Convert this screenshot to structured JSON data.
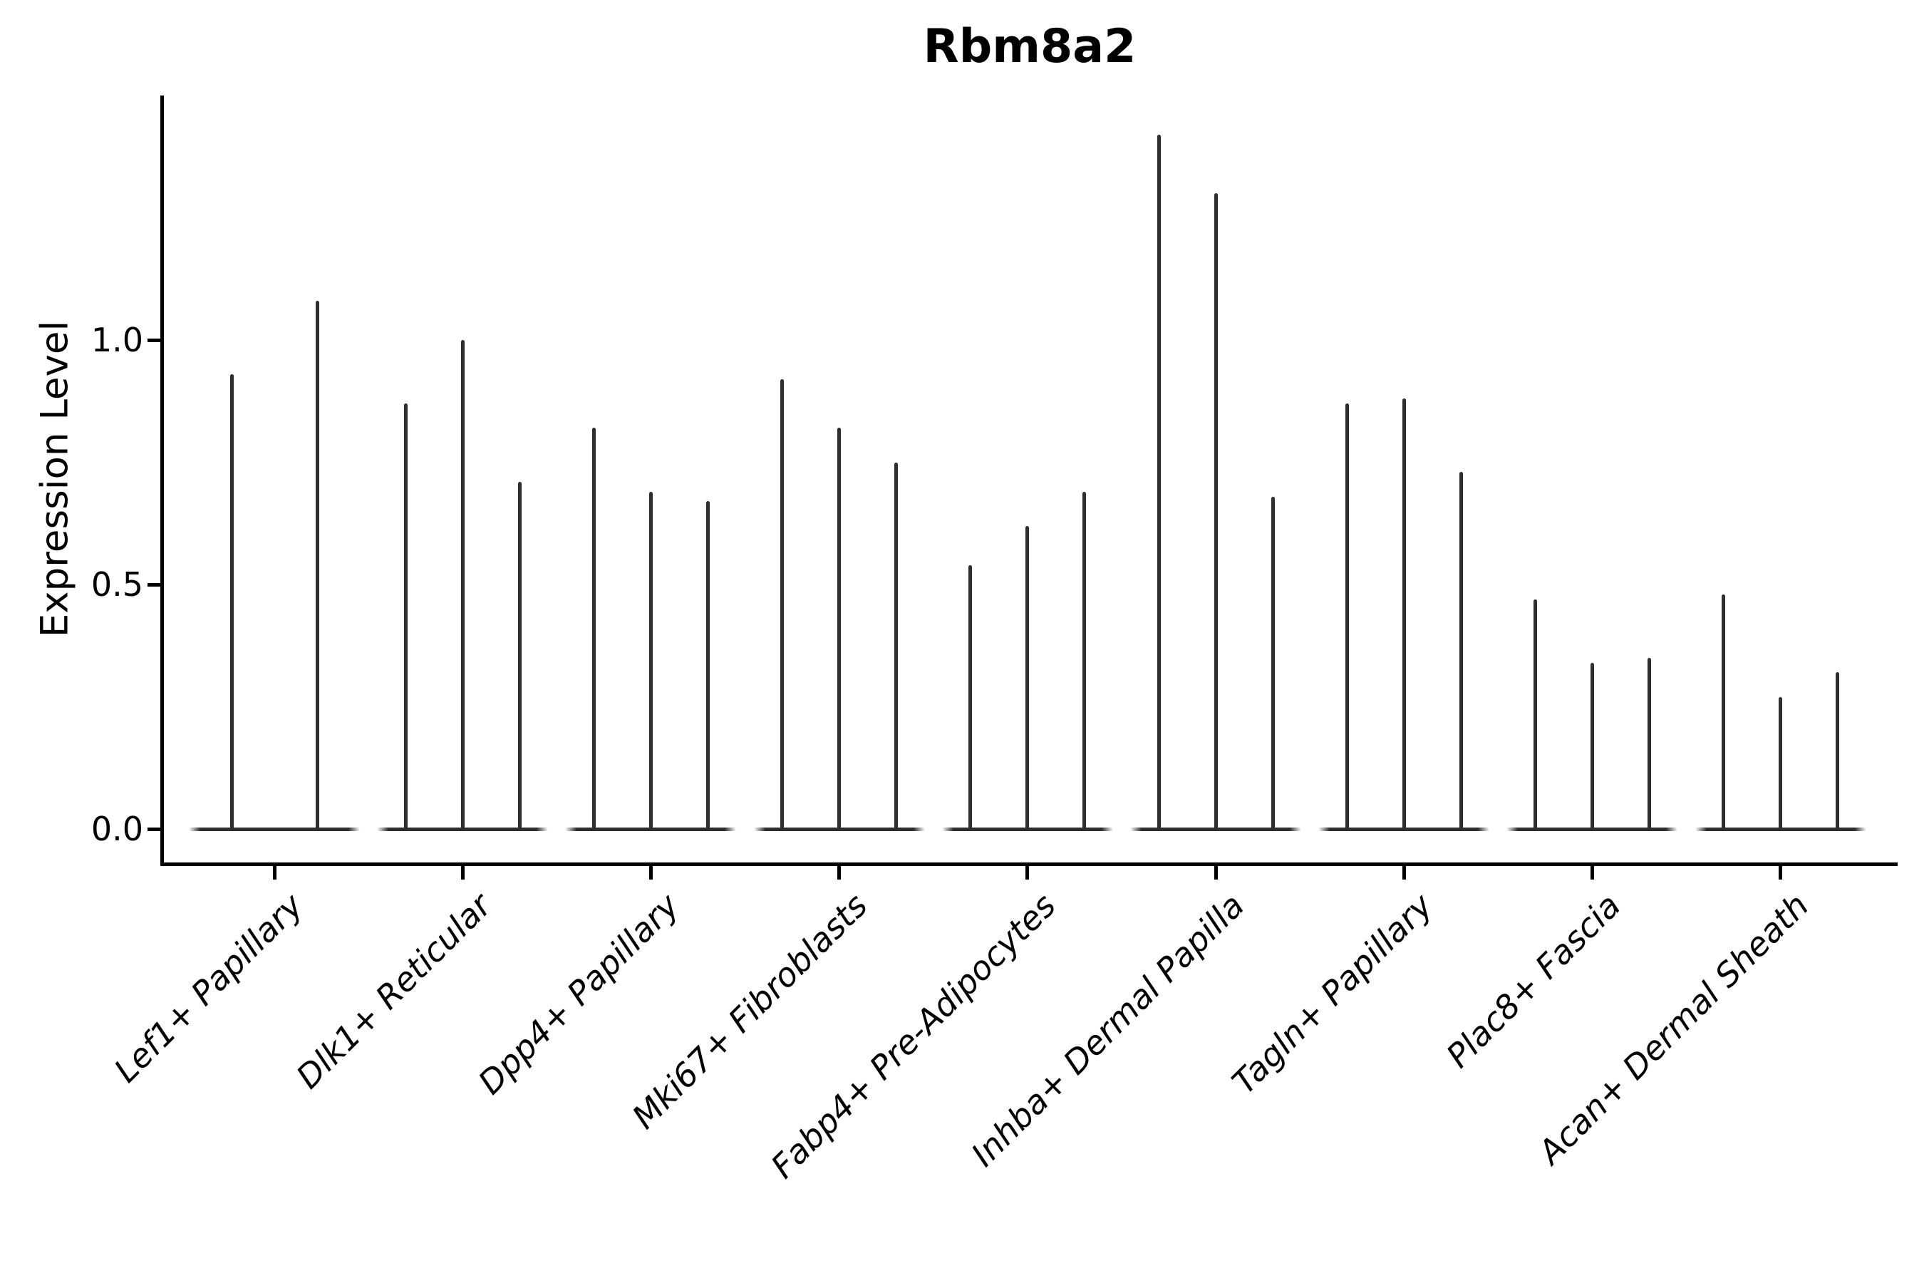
{
  "chart_data": {
    "type": "violin",
    "title": "Rbm8a2",
    "xlabel": "",
    "ylabel": "Expression Level",
    "categories": [
      "Lef1+ Papillary",
      "Dlk1+ Reticular",
      "Dpp4+ Papillary",
      "Mki67+ Fibroblasts",
      "Fabp4+ Pre-Adipocytes",
      "Inhba+ Dermal Papilla",
      "Tagln+ Papillary",
      "Plac8+ Fascia",
      "Acan+ Dermal Sheath"
    ],
    "series": [
      {
        "category": "Lef1+ Papillary",
        "violin_max_expression": [
          0.93,
          1.08
        ]
      },
      {
        "category": "Dlk1+ Reticular",
        "violin_max_expression": [
          0.87,
          1.0,
          0.71
        ]
      },
      {
        "category": "Dpp4+ Papillary",
        "violin_max_expression": [
          0.82,
          0.69,
          0.67
        ]
      },
      {
        "category": "Mki67+ Fibroblasts",
        "violin_max_expression": [
          0.92,
          0.82,
          0.75
        ]
      },
      {
        "category": "Fabp4+ Pre-Adipocytes",
        "violin_max_expression": [
          0.54,
          0.62,
          0.69
        ]
      },
      {
        "category": "Inhba+ Dermal Papilla",
        "violin_max_expression": [
          1.42,
          1.3,
          0.68
        ]
      },
      {
        "category": "Tagln+ Papillary",
        "violin_max_expression": [
          0.87,
          0.88,
          0.73
        ]
      },
      {
        "category": "Plac8+ Fascia",
        "violin_max_expression": [
          0.47,
          0.34,
          0.35
        ]
      },
      {
        "category": "Acan+ Dermal Sheath",
        "violin_max_expression": [
          0.48,
          0.27,
          0.32
        ]
      }
    ],
    "violin_shape_note": "each violin has nearly all density at expression 0 (wide flat base) with a single narrow spike rising to its max expression value; violins reach 0 at minimum",
    "ytick_labels": [
      "0.0",
      "0.5",
      "1.0"
    ],
    "ytick_values": [
      0.0,
      0.5,
      1.0
    ],
    "ylim": [
      -0.07,
      1.5
    ],
    "grid": false,
    "legend": null,
    "colors": {
      "violin": "#2e2e2e",
      "axis": "#000000",
      "text": "#000000",
      "background": "#ffffff"
    }
  }
}
